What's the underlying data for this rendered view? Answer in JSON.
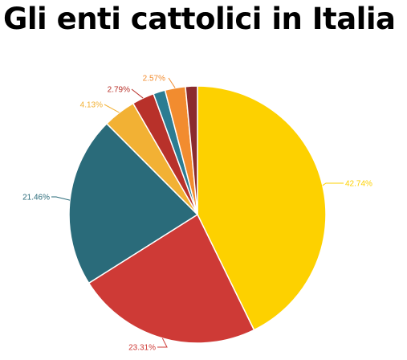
{
  "chart_data": {
    "type": "pie",
    "title": "Gli enti cattolici in Italia",
    "slices": [
      {
        "value": 42.74,
        "label": "42.74%",
        "color": "#FDD100"
      },
      {
        "value": 23.31,
        "label": "23.31%",
        "color": "#CE3A36"
      },
      {
        "value": 21.46,
        "label": "21.46%",
        "color": "#2A6B7A"
      },
      {
        "value": 4.13,
        "label": "4.13%",
        "color": "#F2B134"
      },
      {
        "value": 2.79,
        "label": "2.79%",
        "color": "#B8312A"
      },
      {
        "value": 1.5,
        "label": "",
        "color": "#2B7C92"
      },
      {
        "value": 2.57,
        "label": "2.57%",
        "color": "#F28C2F"
      },
      {
        "value": 1.5,
        "label": "",
        "color": "#8B2B2E"
      }
    ],
    "legend": "none"
  }
}
